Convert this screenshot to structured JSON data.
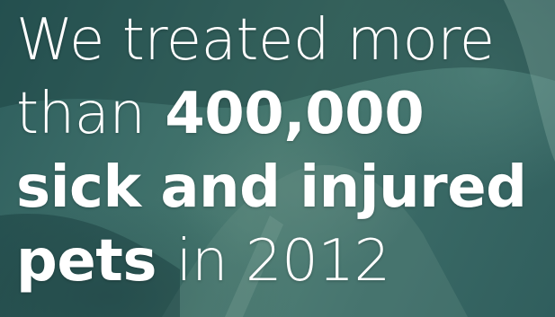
{
  "hero": {
    "background_colors": {
      "base": "#3d6e69",
      "dark": "#2d5d5c",
      "highlight": "#5a8c82",
      "text": "#ffffff"
    },
    "headline": {
      "line1": "We treated more",
      "line2_light": "than",
      "line2_bold": "400,000",
      "line3_bold": "sick and injured",
      "line4_bold": "pets",
      "line4_light": "in 2012"
    }
  }
}
